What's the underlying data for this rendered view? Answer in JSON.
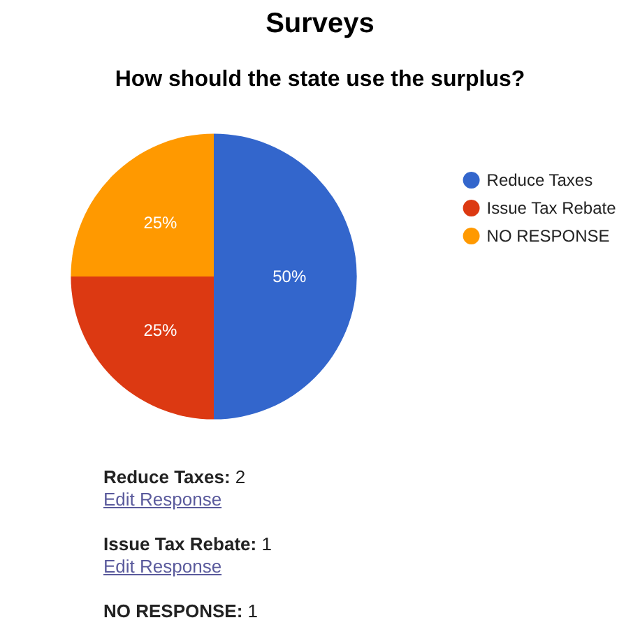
{
  "chart_data": {
    "type": "pie",
    "title": "Surveys",
    "subtitle": "How should the state use the surplus?",
    "categories": [
      "Reduce Taxes",
      "Issue Tax Rebate",
      "NO RESPONSE"
    ],
    "values": [
      50,
      25,
      25
    ],
    "value_labels": [
      "50%",
      "25%",
      "25%"
    ],
    "colors": [
      "#3366cc",
      "#dc3912",
      "#ff9900"
    ],
    "legend": "right",
    "annotations": [
      "Reduce Taxes: 2",
      "Edit Response",
      "Issue Tax Rebate: 1",
      "Edit Response",
      "NO RESPONSE: 1"
    ]
  }
}
